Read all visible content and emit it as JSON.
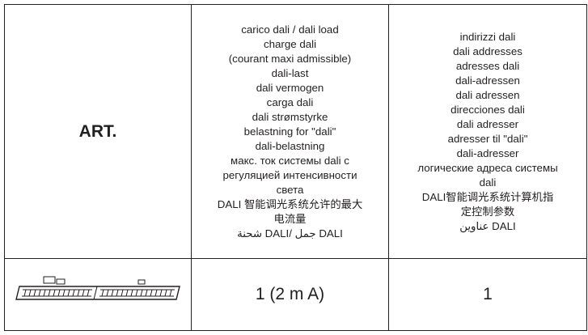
{
  "table": {
    "header": {
      "art": "ART.",
      "load": [
        "carico dali / dali load",
        "charge dali",
        "(courant maxi admissible)",
        "dali-last",
        "dali vermogen",
        "carga dali",
        "dali strømstyrke",
        "belastning for \"dali\"",
        "dali-belastning",
        "макс. ток системы dali с",
        "регуляцией интенсивности",
        "света",
        "DALI 智能调光系统允许的最大",
        "电流量",
        "شحنة DALI/ جمل DALI"
      ],
      "addresses": [
        "indirizzi dali",
        "dali addresses",
        "adresses dali",
        "dali-adressen",
        "dali adressen",
        "direcciones dali",
        "dali adresser",
        "adresser til \"dali\"",
        "dali-adresser",
        "логические адреса системы",
        "dali",
        "DALI智能调光系统计算机指",
        "定控制参数",
        "عناوين DALI"
      ]
    },
    "row": {
      "load": "1 (2 m A)",
      "addresses": "1"
    }
  }
}
